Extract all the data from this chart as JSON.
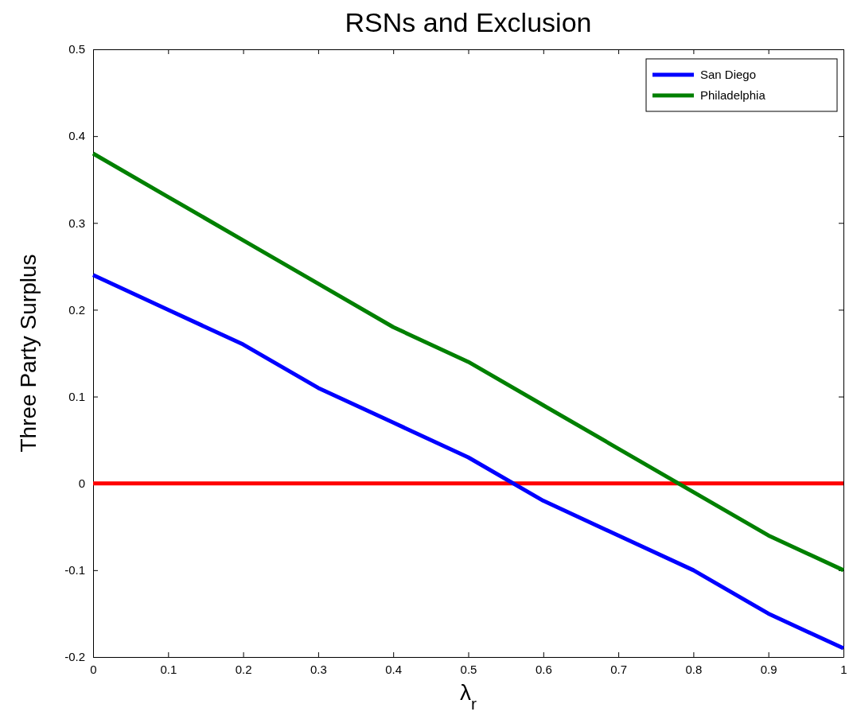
{
  "chart_data": {
    "type": "line",
    "title": "RSNs and Exclusion",
    "xlabel": "λ$_{r}$",
    "ylabel": "Three Party Surplus",
    "x": [
      0,
      0.1,
      0.2,
      0.3,
      0.4,
      0.5,
      0.6,
      0.7,
      0.8,
      0.9,
      1
    ],
    "series": [
      {
        "name": "San Diego",
        "color": "#0000ff",
        "values": [
          0.24,
          0.2,
          0.16,
          0.11,
          0.07,
          0.03,
          -0.02,
          -0.06,
          -0.1,
          -0.15,
          -0.19
        ]
      },
      {
        "name": "Philadelphia",
        "color": "#008000",
        "values": [
          0.38,
          0.33,
          0.28,
          0.23,
          0.18,
          0.14,
          0.09,
          0.04,
          -0.01,
          -0.06,
          -0.1
        ]
      }
    ],
    "ref_lines": [
      {
        "axis": "y",
        "value": 0,
        "color": "#ff0000"
      }
    ],
    "xlim": [
      0,
      1
    ],
    "ylim": [
      -0.2,
      0.5
    ],
    "xticks": [
      0,
      0.1,
      0.2,
      0.3,
      0.4,
      0.5,
      0.6,
      0.7,
      0.8,
      0.9,
      1
    ],
    "yticks": [
      -0.2,
      -0.1,
      0,
      0.1,
      0.2,
      0.3,
      0.4,
      0.5
    ],
    "grid": false,
    "legend": "top right",
    "marker": "none",
    "line_style": "solid"
  }
}
